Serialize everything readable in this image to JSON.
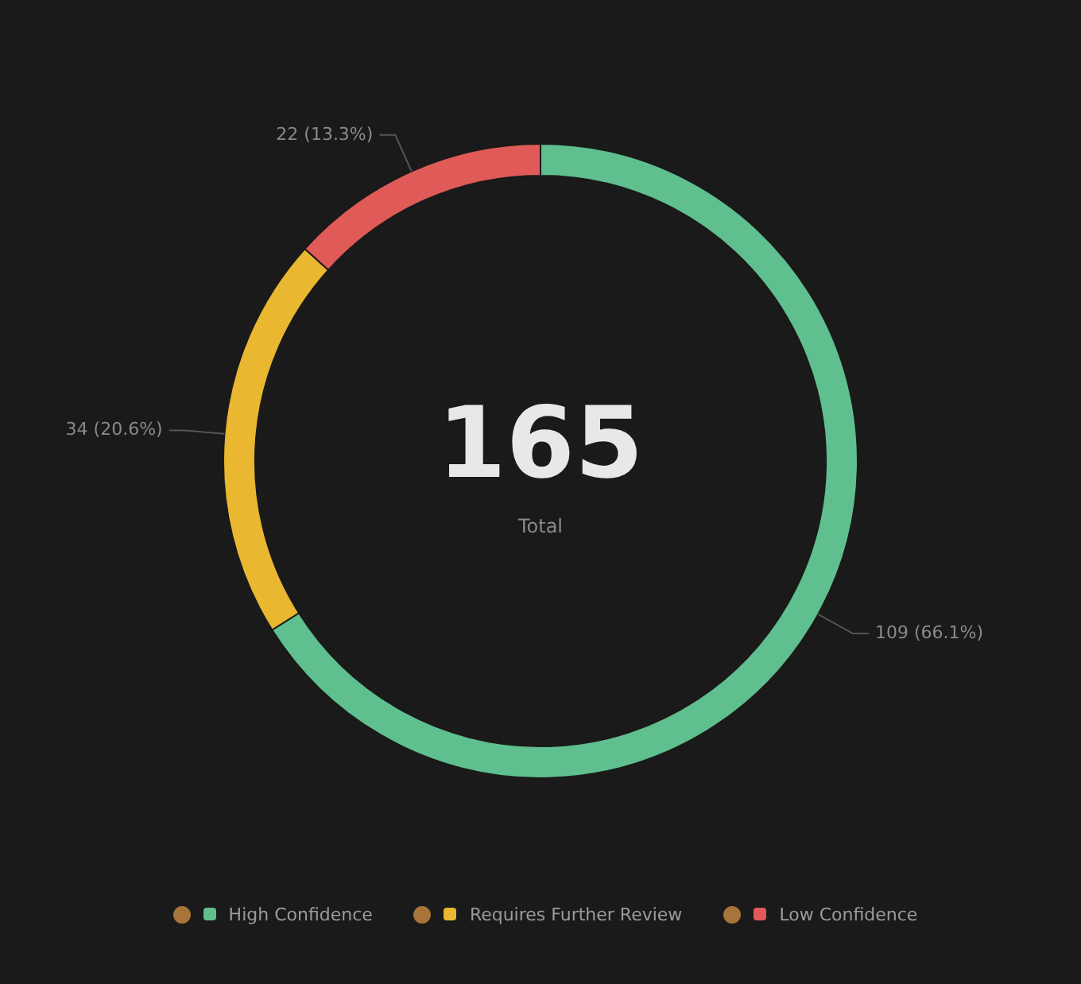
{
  "chart_data": {
    "type": "donut",
    "categories": [
      "High Confidence",
      "Requires Further Review",
      "Low Confidence"
    ],
    "values": [
      109,
      34,
      22
    ],
    "colors": [
      "#5fbf8e",
      "#e9b730",
      "#e05b57"
    ],
    "value_labels": [
      "109 (66.1%)",
      "34 (20.6%)",
      "22 (13.3%)"
    ],
    "annotations": [
      "165",
      "Total"
    ],
    "legend": "bottom"
  }
}
